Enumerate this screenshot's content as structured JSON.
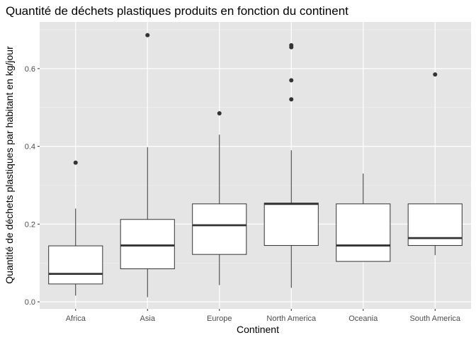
{
  "chart_data": {
    "type": "box",
    "title": "Quantité de déchets plastiques produits en fonction du continent",
    "xlabel": "Continent",
    "ylabel": "Quantité de déchets plastiques par habitant en kg/jour",
    "ylim": [
      -0.018,
      0.72
    ],
    "y_ticks": [
      0.0,
      0.2,
      0.4,
      0.6
    ],
    "y_tick_labels": [
      "0.0",
      "0.2",
      "0.4",
      "0.6"
    ],
    "grid": true,
    "panel_background": "#e5e5e5",
    "box_fill": "#ffffff",
    "line_color": "#333333",
    "categories": [
      "Africa",
      "Asia",
      "Europe",
      "North America",
      "Oceania",
      "South America"
    ],
    "boxes": [
      {
        "category": "Africa",
        "whisker_low": 0.016,
        "q1": 0.046,
        "median": 0.072,
        "q3": 0.144,
        "whisker_high": 0.24,
        "outliers": [
          0.358
        ]
      },
      {
        "category": "Asia",
        "whisker_low": 0.012,
        "q1": 0.085,
        "median": 0.145,
        "q3": 0.212,
        "whisker_high": 0.398,
        "outliers": [
          0.686
        ]
      },
      {
        "category": "Europe",
        "whisker_low": 0.043,
        "q1": 0.122,
        "median": 0.197,
        "q3": 0.252,
        "whisker_high": 0.43,
        "outliers": [
          0.485
        ]
      },
      {
        "category": "North America",
        "whisker_low": 0.036,
        "q1": 0.145,
        "median": 0.252,
        "q3": 0.254,
        "whisker_high": 0.39,
        "outliers": [
          0.521,
          0.57,
          0.655,
          0.66
        ]
      },
      {
        "category": "Oceania",
        "whisker_low": 0.104,
        "q1": 0.104,
        "median": 0.145,
        "q3": 0.252,
        "whisker_high": 0.33,
        "outliers": []
      },
      {
        "category": "South America",
        "whisker_low": 0.12,
        "q1": 0.145,
        "median": 0.164,
        "q3": 0.252,
        "whisker_high": 0.252,
        "outliers": [
          0.585
        ]
      }
    ]
  }
}
